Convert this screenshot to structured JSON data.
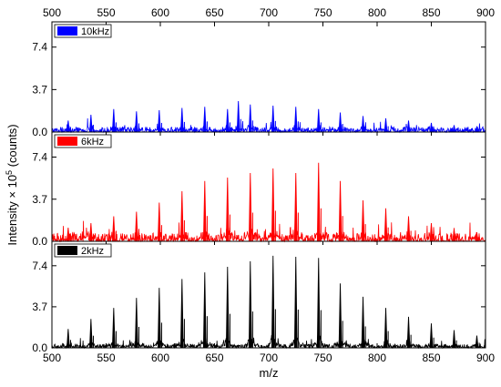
{
  "chart_data": {
    "type": "line",
    "xlabel": "m/z",
    "ylabel": {
      "prefix": "Intensity × 10",
      "exponent": "5",
      "suffix": " (counts)"
    },
    "xlim": [
      500,
      900
    ],
    "xticks": [
      500,
      550,
      600,
      650,
      700,
      750,
      800,
      850,
      900
    ],
    "x_tick_labels": [
      "500",
      "550",
      "600",
      "650",
      "700",
      "750",
      "800",
      "850",
      "900"
    ],
    "ylim": [
      0,
      9.6
    ],
    "yticks": [
      0.0,
      3.7,
      7.4
    ],
    "y_tick_labels": [
      "0.0",
      "3.7",
      "7.4"
    ],
    "grid": false,
    "legend_position": "top-left",
    "colors": {
      "10kHz": "#0000ff",
      "6kHz": "#ff0000",
      "2kHz": "#000000"
    },
    "series": [
      {
        "name": "10kHz",
        "color": "#0000ff",
        "noise": 0.45,
        "peaks": [
          [
            515,
            1.0
          ],
          [
            536,
            1.5
          ],
          [
            557,
            2.0
          ],
          [
            578,
            1.8
          ],
          [
            599,
            1.9
          ],
          [
            620,
            2.1
          ],
          [
            641,
            2.2
          ],
          [
            662,
            2.0
          ],
          [
            672,
            2.7
          ],
          [
            683,
            2.4
          ],
          [
            704,
            2.3
          ],
          [
            725,
            2.2
          ],
          [
            746,
            2.0
          ],
          [
            766,
            1.7
          ],
          [
            787,
            1.4
          ],
          [
            808,
            1.2
          ],
          [
            829,
            1.0
          ],
          [
            850,
            0.8
          ],
          [
            871,
            0.6
          ],
          [
            892,
            0.5
          ]
        ]
      },
      {
        "name": "6kHz",
        "color": "#ff0000",
        "noise": 0.7,
        "peaks": [
          [
            515,
            1.2
          ],
          [
            536,
            1.6
          ],
          [
            557,
            2.2
          ],
          [
            578,
            2.6
          ],
          [
            599,
            3.4
          ],
          [
            620,
            4.4
          ],
          [
            641,
            5.3
          ],
          [
            662,
            5.6
          ],
          [
            683,
            6.0
          ],
          [
            704,
            6.4
          ],
          [
            725,
            6.0
          ],
          [
            746,
            6.9
          ],
          [
            766,
            5.3
          ],
          [
            787,
            3.6
          ],
          [
            808,
            2.9
          ],
          [
            829,
            2.2
          ],
          [
            850,
            1.6
          ],
          [
            871,
            1.1
          ],
          [
            892,
            0.8
          ]
        ]
      },
      {
        "name": "2kHz",
        "color": "#000000",
        "noise": 0.35,
        "peaks": [
          [
            515,
            1.7
          ],
          [
            536,
            2.6
          ],
          [
            557,
            3.6
          ],
          [
            578,
            4.5
          ],
          [
            599,
            5.4
          ],
          [
            620,
            6.2
          ],
          [
            641,
            6.8
          ],
          [
            662,
            7.3
          ],
          [
            683,
            7.8
          ],
          [
            704,
            8.3
          ],
          [
            725,
            8.2
          ],
          [
            746,
            8.1
          ],
          [
            766,
            5.8
          ],
          [
            787,
            4.6
          ],
          [
            808,
            3.6
          ],
          [
            829,
            2.8
          ],
          [
            850,
            2.2
          ],
          [
            871,
            1.6
          ],
          [
            892,
            1.1
          ]
        ]
      }
    ]
  }
}
